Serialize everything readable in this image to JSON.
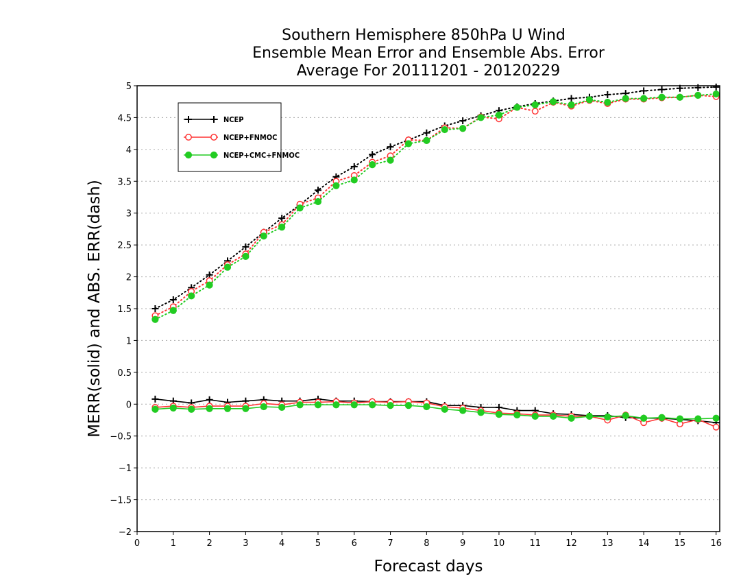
{
  "colors": {
    "series_1": "#000000",
    "series_2": "#ff3333",
    "series_3": "#22cc22",
    "grid": "#aaaaaa"
  },
  "chart_data": {
    "type": "line",
    "title": [
      "Southern Hemisphere 850hPa U Wind",
      "Ensemble Mean Error and Ensemble Abs. Error",
      "Average For 20111201 - 20120229"
    ],
    "xlabel": "Forecast days",
    "ylabel": "MERR(solid) and ABS. ERR(dash)",
    "xlim": [
      0,
      16.1
    ],
    "ylim": [
      -2,
      5
    ],
    "xticks": [
      0,
      1,
      2,
      3,
      4,
      5,
      6,
      7,
      8,
      9,
      10,
      11,
      12,
      13,
      14,
      15,
      16
    ],
    "yticks": [
      -2,
      -1.5,
      -1,
      -0.5,
      0,
      0.5,
      1,
      1.5,
      2,
      2.5,
      3,
      3.5,
      4,
      4.5,
      5
    ],
    "xtick_labels": [
      "0",
      "1",
      "2",
      "3",
      "4",
      "5",
      "6",
      "7",
      "8",
      "9",
      "10",
      "11",
      "12",
      "13",
      "14",
      "15",
      "16"
    ],
    "ytick_labels": [
      "−2",
      "−1.5",
      "−1",
      "−0.5",
      "0",
      "0.5",
      "1",
      "1.5",
      "2",
      "2.5",
      "3",
      "3.5",
      "4",
      "4.5",
      "5"
    ],
    "grid": true,
    "legend_position": "top-left",
    "x": [
      0.5,
      1,
      1.5,
      2,
      2.5,
      3,
      3.5,
      4,
      4.5,
      5,
      5.5,
      6,
      6.5,
      7,
      7.5,
      8,
      8.5,
      9,
      9.5,
      10,
      10.5,
      11,
      11.5,
      12,
      12.5,
      13,
      13.5,
      14,
      14.5,
      15,
      15.5,
      16
    ],
    "series": [
      {
        "name": "NCEP",
        "marker": "plus",
        "color": "#000000",
        "abs_err": [
          1.5,
          1.64,
          1.83,
          2.03,
          2.25,
          2.47,
          2.7,
          2.92,
          3.13,
          3.36,
          3.57,
          3.73,
          3.92,
          4.04,
          4.15,
          4.26,
          4.37,
          4.45,
          4.53,
          4.61,
          4.67,
          4.72,
          4.76,
          4.8,
          4.82,
          4.86,
          4.88,
          4.92,
          4.94,
          4.96,
          4.97,
          4.98
        ],
        "mean_err": [
          0.08,
          0.05,
          0.02,
          0.07,
          0.03,
          0.05,
          0.07,
          0.05,
          0.05,
          0.08,
          0.05,
          0.05,
          0.04,
          0.04,
          0.04,
          0.04,
          -0.02,
          -0.02,
          -0.05,
          -0.05,
          -0.1,
          -0.1,
          -0.15,
          -0.16,
          -0.18,
          -0.18,
          -0.21,
          -0.22,
          -0.22,
          -0.24,
          -0.26,
          -0.29
        ]
      },
      {
        "name": "NCEP+FNMOC",
        "marker": "open-circle",
        "color": "#ff3333",
        "abs_err": [
          1.39,
          1.53,
          1.77,
          1.94,
          2.19,
          2.36,
          2.7,
          2.82,
          3.14,
          3.24,
          3.5,
          3.59,
          3.8,
          3.9,
          4.15,
          4.14,
          4.34,
          4.33,
          4.51,
          4.48,
          4.66,
          4.6,
          4.74,
          4.68,
          4.77,
          4.72,
          4.79,
          4.79,
          4.81,
          4.82,
          4.85,
          4.83
        ],
        "mean_err": [
          -0.05,
          -0.03,
          -0.05,
          -0.03,
          -0.03,
          -0.03,
          0.01,
          -0.01,
          0.03,
          0.03,
          0.04,
          0.02,
          0.04,
          0.03,
          0.04,
          0.02,
          -0.04,
          -0.06,
          -0.1,
          -0.14,
          -0.15,
          -0.17,
          -0.17,
          -0.19,
          -0.19,
          -0.25,
          -0.17,
          -0.29,
          -0.22,
          -0.31,
          -0.24,
          -0.36
        ]
      },
      {
        "name": "NCEP+CMC+FNMOC",
        "marker": "filled-circle",
        "color": "#22cc22",
        "abs_err": [
          1.33,
          1.47,
          1.7,
          1.87,
          2.15,
          2.32,
          2.64,
          2.78,
          3.08,
          3.18,
          3.43,
          3.52,
          3.76,
          3.83,
          4.09,
          4.14,
          4.31,
          4.33,
          4.5,
          4.54,
          4.66,
          4.7,
          4.75,
          4.7,
          4.78,
          4.74,
          4.8,
          4.8,
          4.82,
          4.82,
          4.85,
          4.87
        ],
        "mean_err": [
          -0.08,
          -0.06,
          -0.08,
          -0.07,
          -0.07,
          -0.07,
          -0.04,
          -0.05,
          -0.01,
          -0.01,
          -0.01,
          -0.01,
          -0.01,
          -0.02,
          -0.02,
          -0.04,
          -0.08,
          -0.1,
          -0.13,
          -0.16,
          -0.17,
          -0.19,
          -0.19,
          -0.22,
          -0.19,
          -0.2,
          -0.18,
          -0.22,
          -0.21,
          -0.23,
          -0.23,
          -0.22
        ]
      }
    ]
  }
}
